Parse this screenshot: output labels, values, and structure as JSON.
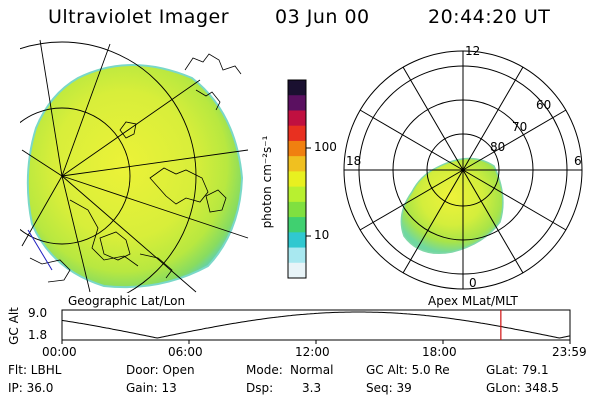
{
  "header": {
    "title": "Ultraviolet Imager",
    "date": "03 Jun 00",
    "time": "20:44:20 UT"
  },
  "colorbar": {
    "unit_label": "photon cm⁻²s⁻¹",
    "ticks": [
      "100",
      "10"
    ],
    "colors": [
      "#1a1030",
      "#5a1060",
      "#c01040",
      "#e83020",
      "#f08010",
      "#f0c020",
      "#e8f020",
      "#b8f030",
      "#80e040",
      "#40d070",
      "#30c8d0",
      "#a8e8f0",
      "#e8f4f8"
    ]
  },
  "geo_panel": {
    "caption": "Geographic Lat/Lon"
  },
  "polar_panel": {
    "caption": "Apex MLat/MLT",
    "mlt_labels": {
      "top": "12",
      "left": "18",
      "right": "6",
      "bottom": "0"
    },
    "lat_labels": [
      "80",
      "70",
      "60"
    ]
  },
  "altitude_plot": {
    "ylabel": "GC Alt",
    "yticks": [
      "9.0",
      "1.8"
    ],
    "xticks": [
      "00:00",
      "06:00",
      "12:00",
      "18:00",
      "23:59"
    ],
    "current_marker_time": "20:44"
  },
  "info": {
    "flt": "Flt: LBHL",
    "ip": "IP: 36.0",
    "door": "Door: Open",
    "gain": "Gain: 13",
    "mode_label": "Mode:",
    "mode_value": "Normal",
    "dsp_label": "Dsp:",
    "dsp_value": "3.3",
    "gcalt": "GC Alt: 5.0 Re",
    "seq": "Seq: 39",
    "glat": "GLat: 79.1",
    "glon": "GLon: 348.5"
  }
}
